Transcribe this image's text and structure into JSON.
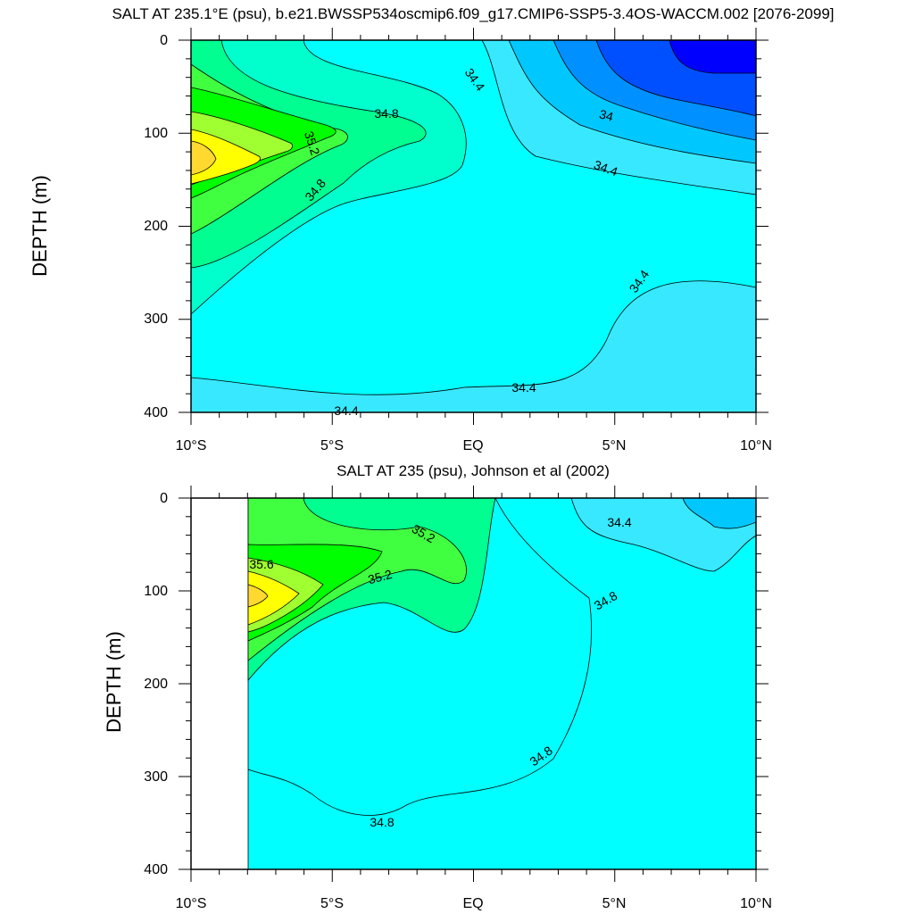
{
  "chart_data": [
    {
      "type": "contour",
      "title": "SALT AT 235.1°E (psu), b.e21.BWSSP534oscmip6.f09_g17.CMIP6-SSP5-3.4OS-WACCM.002 [2076-2099]",
      "xlabel": "",
      "ylabel": "DEPTH (m)",
      "xlim": [
        -10,
        10
      ],
      "ylim": [
        400,
        0
      ],
      "x_ticks": [
        "10°S",
        "5°S",
        "EQ",
        "5°N",
        "10°N"
      ],
      "y_ticks": [
        "0",
        "100",
        "200",
        "300",
        "400"
      ],
      "contour_interval": 0.2,
      "contour_labels": [
        "34.4",
        "34.8",
        "35.2",
        "34.8",
        "34.4",
        "34",
        "34.4",
        "34.4",
        "34.4"
      ]
    },
    {
      "type": "contour",
      "title": "SALT AT 235 (psu), Johnson et al (2002)",
      "xlabel": "",
      "ylabel": "DEPTH (m)",
      "xlim": [
        -10,
        10
      ],
      "ylim": [
        400,
        0
      ],
      "x_ticks": [
        "10°S",
        "5°S",
        "EQ",
        "5°N",
        "10°N"
      ],
      "y_ticks": [
        "0",
        "100",
        "200",
        "300",
        "400"
      ],
      "contour_interval": 0.2,
      "contour_labels": [
        "35.2",
        "35.6",
        "35.2",
        "34.4",
        "34.8",
        "34.8",
        "34.8"
      ]
    }
  ],
  "colors": {
    "s33_6": "#0000ff",
    "s33_8": "#0050ff",
    "s34_0": "#0090ff",
    "s34_2": "#00c8ff",
    "s34_4": "#38e8ff",
    "s34_6": "#00ffff",
    "s34_8": "#00ffcc",
    "s35_0": "#00ff90",
    "s35_2": "#40ff40",
    "s35_4": "#00ff00",
    "s35_6": "#a0ff30",
    "s35_8": "#ffff00",
    "s36_0": "#ffd830"
  }
}
